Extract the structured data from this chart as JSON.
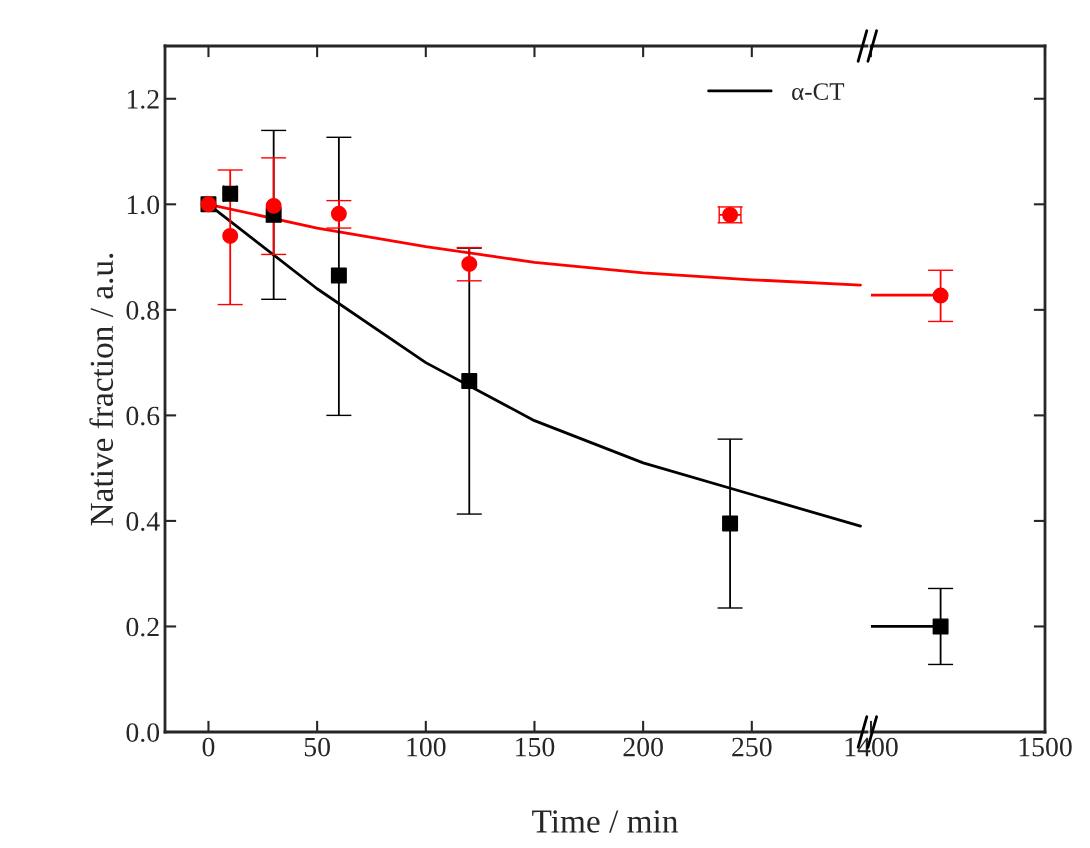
{
  "chart_data": [
    {
      "type": "scatter",
      "xlabel": "Time / min",
      "ylabel": "Native fraction / a.u.",
      "xlim": [
        -20,
        303
      ],
      "xticks": [
        0,
        50,
        100,
        150,
        200,
        250
      ],
      "ylim": [
        0,
        1.3
      ],
      "yticks": [
        {
          "value": 0,
          "label": "0.0"
        },
        0.2,
        0.4,
        0.6,
        0.8,
        {
          "value": 1,
          "label": "1.0"
        },
        1.2
      ],
      "legend": "top right",
      "grid": false,
      "tick_labels": "xy",
      "series": [
        {
          "name": "α-CT",
          "type": "line",
          "color": "#000000",
          "x": [
            0,
            50,
            100,
            150,
            200,
            250,
            300
          ],
          "values": [
            1.0,
            0.84,
            0.7,
            0.59,
            0.51,
            0.45,
            0.39
          ]
        },
        {
          "type": "line",
          "color": "#ff0000",
          "x": [
            0,
            50,
            100,
            150,
            200,
            250,
            300
          ],
          "values": [
            1.0,
            0.955,
            0.92,
            0.89,
            0.87,
            0.857,
            0.847
          ]
        },
        {
          "marker": "square",
          "color": "#000000",
          "x": [
            0,
            10,
            30,
            60,
            120,
            240
          ],
          "values": [
            1.0,
            1.02,
            0.98,
            0.865,
            0.665,
            0.395
          ],
          "errors": [
            null,
            null,
            [
              0.82,
              1.14
            ],
            [
              0.6,
              1.127
            ],
            [
              0.413,
              0.917
            ],
            [
              0.235,
              0.555
            ]
          ],
          "xerrors": [
            null,
            [
              7,
              13
            ],
            null,
            null,
            null,
            null
          ]
        },
        {
          "marker": "circle",
          "color": "#ff0000",
          "x": [
            0,
            10,
            30,
            60,
            120,
            240
          ],
          "values": [
            1.0,
            0.94,
            0.997,
            0.982,
            0.887,
            0.98
          ],
          "errors": [
            null,
            [
              0.81,
              1.065
            ],
            [
              0.905,
              1.088
            ],
            [
              0.955,
              1.007
            ],
            [
              0.855,
              0.918
            ],
            [
              0.965,
              0.995
            ]
          ],
          "xerrors": [
            null,
            null,
            null,
            null,
            null,
            [
              235,
              245
            ]
          ]
        }
      ]
    },
    {
      "type": "scatter",
      "xlim": [
        1400,
        1500
      ],
      "xticks": [
        1400,
        1500
      ],
      "ylim": [
        0,
        1.3
      ],
      "yticks": [
        0,
        0.2,
        0.4,
        0.6,
        0.8,
        1,
        1.2
      ],
      "grid": false,
      "tick_labels": "x",
      "series": [
        {
          "type": "line",
          "color": "#000000",
          "x": [
            1400,
            1440
          ],
          "values": [
            0.2,
            0.2
          ]
        },
        {
          "type": "line",
          "color": "#ff0000",
          "x": [
            1400,
            1440
          ],
          "values": [
            0.828,
            0.828
          ]
        },
        {
          "marker": "square",
          "color": "#000000",
          "x": [
            1440
          ],
          "values": [
            0.2
          ],
          "errors": [
            [
              0.128,
              0.272
            ]
          ]
        },
        {
          "marker": "circle",
          "color": "#ff0000",
          "x": [
            1440
          ],
          "values": [
            0.827
          ],
          "errors": [
            [
              0.778,
              0.875
            ]
          ]
        }
      ]
    }
  ]
}
